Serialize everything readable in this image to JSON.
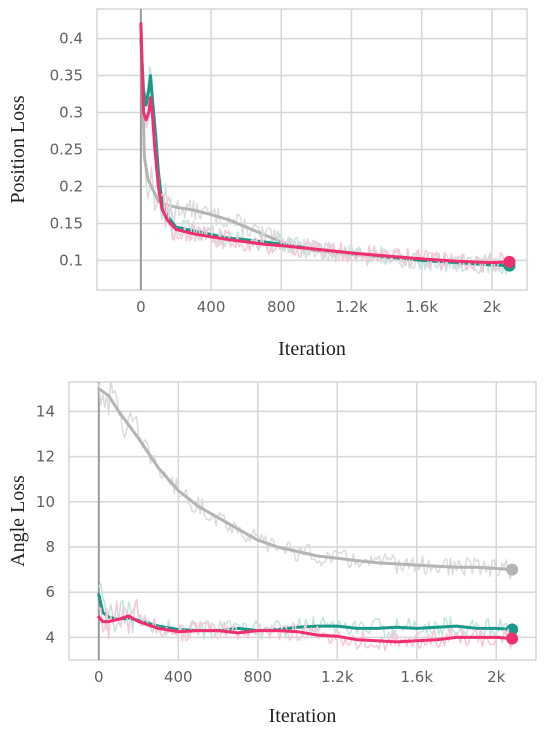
{
  "chart_data": [
    {
      "type": "line",
      "xlabel": "Iteration",
      "ylabel": "Position Loss",
      "xlim": [
        -250,
        2200
      ],
      "ylim": [
        0.06,
        0.44
      ],
      "x_ticks": [
        0,
        400,
        800,
        1200,
        1600,
        2000
      ],
      "x_tick_labels": [
        "0",
        "400",
        "800",
        "1.2k",
        "1.6k",
        "2k"
      ],
      "y_ticks": [
        0.1,
        0.15,
        0.2,
        0.25,
        0.3,
        0.35,
        0.4
      ],
      "y_tick_labels": [
        "0.1",
        "0.15",
        "0.2",
        "0.25",
        "0.3",
        "0.35",
        "0.4"
      ],
      "grid": true,
      "series": [
        {
          "color": "#b4b4b4",
          "raw_color": "#dcdcdc",
          "x": [
            0,
            20,
            40,
            60,
            80,
            100,
            150,
            200,
            300,
            400,
            500,
            600,
            700,
            800,
            900,
            1000,
            1200,
            1400,
            1600,
            1800,
            2000,
            2100
          ],
          "values": [
            0.42,
            0.24,
            0.21,
            0.2,
            0.19,
            0.18,
            0.175,
            0.172,
            0.168,
            0.162,
            0.155,
            0.145,
            0.135,
            0.125,
            0.117,
            0.113,
            0.108,
            0.104,
            0.1,
            0.097,
            0.094,
            0.093
          ]
        },
        {
          "color": "#1a9988",
          "raw_color": "#c2e3df",
          "x": [
            0,
            15,
            30,
            45,
            55,
            65,
            80,
            100,
            120,
            150,
            200,
            300,
            400,
            500,
            600,
            700,
            800,
            1000,
            1200,
            1400,
            1600,
            1800,
            2000,
            2100
          ],
          "values": [
            0.4,
            0.33,
            0.31,
            0.33,
            0.35,
            0.32,
            0.28,
            0.22,
            0.18,
            0.16,
            0.145,
            0.14,
            0.135,
            0.13,
            0.128,
            0.125,
            0.122,
            0.115,
            0.11,
            0.105,
            0.1,
            0.097,
            0.094,
            0.093
          ]
        },
        {
          "color": "#f0306e",
          "raw_color": "#f8c6d6",
          "x": [
            0,
            15,
            30,
            45,
            55,
            65,
            80,
            100,
            120,
            150,
            200,
            300,
            400,
            500,
            600,
            700,
            800,
            1000,
            1200,
            1400,
            1600,
            1800,
            2000,
            2100
          ],
          "values": [
            0.42,
            0.3,
            0.29,
            0.3,
            0.32,
            0.3,
            0.25,
            0.2,
            0.17,
            0.155,
            0.142,
            0.136,
            0.132,
            0.128,
            0.125,
            0.122,
            0.12,
            0.115,
            0.11,
            0.106,
            0.102,
            0.099,
            0.097,
            0.098
          ]
        }
      ]
    },
    {
      "type": "line",
      "xlabel": "Iteration",
      "ylabel": "Angle Loss",
      "xlim": [
        -150,
        2200
      ],
      "ylim": [
        3.0,
        15.3
      ],
      "x_ticks": [
        0,
        400,
        800,
        1200,
        1600,
        2000
      ],
      "x_tick_labels": [
        "0",
        "400",
        "800",
        "1.2k",
        "1.6k",
        "2k"
      ],
      "y_ticks": [
        4,
        6,
        8,
        10,
        12,
        14
      ],
      "y_tick_labels": [
        "4",
        "6",
        "8",
        "10",
        "12",
        "14"
      ],
      "grid": true,
      "series": [
        {
          "color": "#b4b4b4",
          "raw_color": "#dcdcdc",
          "x": [
            0,
            50,
            100,
            200,
            300,
            400,
            500,
            600,
            700,
            800,
            900,
            1000,
            1100,
            1200,
            1300,
            1400,
            1500,
            1600,
            1700,
            1800,
            1900,
            2000,
            2080
          ],
          "values": [
            15.0,
            14.7,
            14.0,
            12.8,
            11.5,
            10.5,
            9.8,
            9.3,
            8.8,
            8.3,
            8.0,
            7.8,
            7.6,
            7.5,
            7.4,
            7.3,
            7.25,
            7.2,
            7.15,
            7.1,
            7.1,
            7.05,
            7.0
          ]
        },
        {
          "color": "#1a9988",
          "raw_color": "#c2e3df",
          "x": [
            0,
            20,
            50,
            100,
            150,
            200,
            300,
            400,
            500,
            600,
            700,
            800,
            900,
            1000,
            1100,
            1200,
            1300,
            1400,
            1500,
            1600,
            1700,
            1800,
            1900,
            2000,
            2080
          ],
          "values": [
            5.9,
            5.1,
            4.9,
            4.8,
            4.85,
            4.75,
            4.5,
            4.35,
            4.3,
            4.3,
            4.4,
            4.3,
            4.35,
            4.45,
            4.5,
            4.5,
            4.4,
            4.4,
            4.45,
            4.4,
            4.45,
            4.5,
            4.4,
            4.4,
            4.35
          ]
        },
        {
          "color": "#f0306e",
          "raw_color": "#f8c6d6",
          "x": [
            0,
            20,
            50,
            100,
            150,
            200,
            300,
            400,
            500,
            600,
            700,
            800,
            900,
            1000,
            1100,
            1200,
            1300,
            1400,
            1500,
            1600,
            1700,
            1800,
            1900,
            2000,
            2080
          ],
          "values": [
            4.9,
            4.7,
            4.7,
            4.8,
            4.95,
            4.7,
            4.4,
            4.25,
            4.3,
            4.3,
            4.2,
            4.3,
            4.3,
            4.25,
            4.1,
            4.05,
            3.9,
            3.85,
            3.8,
            3.85,
            3.9,
            4.0,
            4.0,
            4.0,
            3.95
          ]
        }
      ]
    }
  ]
}
